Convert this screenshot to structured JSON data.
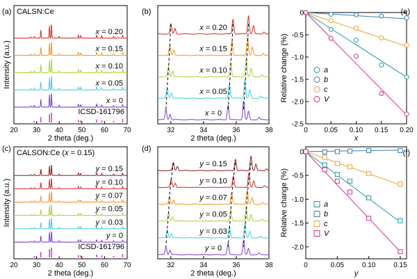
{
  "chart_data": [
    {
      "id": "a",
      "panel_label": "(a)",
      "type": "line",
      "title": "CALSN:Ce",
      "xlabel": "2 theta (deg.)",
      "ylabel": "Intensity (a.u.)",
      "xlim": [
        20,
        70
      ],
      "xticks": [
        20,
        30,
        40,
        50,
        60,
        70
      ],
      "reference": "ICSD-161796",
      "reference_color": "#cc33cc",
      "reference_peaks": [
        {
          "x": 29.0,
          "h": 0.15
        },
        {
          "x": 31.9,
          "h": 0.55
        },
        {
          "x": 35.7,
          "h": 0.85
        },
        {
          "x": 36.6,
          "h": 1.0
        },
        {
          "x": 40.0,
          "h": 0.15
        },
        {
          "x": 48.5,
          "h": 0.25
        },
        {
          "x": 49.5,
          "h": 0.2
        },
        {
          "x": 56.5,
          "h": 0.3
        },
        {
          "x": 58.8,
          "h": 0.2
        },
        {
          "x": 64.0,
          "h": 0.15
        },
        {
          "x": 68.0,
          "h": 0.35
        }
      ],
      "series": [
        {
          "name": "x = 0.20",
          "var": "x",
          "val": "0.20",
          "color": "#d7261e",
          "shift": 0.0
        },
        {
          "name": "x = 0.15",
          "var": "x",
          "val": "0.15",
          "color": "#f39322",
          "shift": 0.0
        },
        {
          "name": "x = 0.10",
          "var": "x",
          "val": "0.10",
          "color": "#a6d22c",
          "shift": 0.0
        },
        {
          "name": "x = 0.05",
          "var": "x",
          "val": "0.05",
          "color": "#3fcde0",
          "shift": 0.0
        },
        {
          "name": "x = 0",
          "var": "x",
          "val": "0",
          "color": "#7a3bd0",
          "shift": 0.0
        }
      ],
      "peaks": [
        {
          "x": 27.5,
          "h": 0.08
        },
        {
          "x": 29.0,
          "h": 0.12
        },
        {
          "x": 31.9,
          "h": 0.55
        },
        {
          "x": 35.7,
          "h": 0.85
        },
        {
          "x": 36.6,
          "h": 1.0
        },
        {
          "x": 40.0,
          "h": 0.12
        },
        {
          "x": 48.5,
          "h": 0.22
        },
        {
          "x": 49.5,
          "h": 0.18
        },
        {
          "x": 56.5,
          "h": 0.22
        },
        {
          "x": 58.8,
          "h": 0.15
        },
        {
          "x": 64.0,
          "h": 0.12
        },
        {
          "x": 68.0,
          "h": 0.2
        }
      ]
    },
    {
      "id": "b",
      "panel_label": "(b)",
      "type": "line",
      "xlabel": "2 theta (deg.)",
      "xlim": [
        31.2,
        38
      ],
      "xticks": [
        32,
        34,
        36,
        38
      ],
      "series": [
        {
          "name": "x = 0.20",
          "var": "x",
          "val": "0.20",
          "color": "#d7261e",
          "shift": 0.3
        },
        {
          "name": "x = 0.15",
          "var": "x",
          "val": "0.15",
          "color": "#f39322",
          "shift": 0.24
        },
        {
          "name": "x = 0.10",
          "var": "x",
          "val": "0.10",
          "color": "#a6d22c",
          "shift": 0.16
        },
        {
          "name": "x = 0.05",
          "var": "x",
          "val": "0.05",
          "color": "#3fcde0",
          "shift": 0.08
        },
        {
          "name": "x = 0",
          "var": "x",
          "val": "0",
          "color": "#7a3bd0",
          "shift": 0.0
        }
      ],
      "peaks": [
        {
          "x": 31.7,
          "h": 0.55
        },
        {
          "x": 31.95,
          "h": 0.3
        },
        {
          "x": 35.5,
          "h": 0.8
        },
        {
          "x": 36.45,
          "h": 1.0
        },
        {
          "x": 36.75,
          "h": 0.45
        },
        {
          "x": 37.4,
          "h": 0.12
        }
      ],
      "guide_peaks": [
        31.7,
        35.5,
        36.45
      ]
    },
    {
      "id": "e",
      "panel_label": "(e)",
      "type": "scatter",
      "xlabel": "x",
      "ylabel": "Relative change (%)",
      "xlim": [
        0,
        0.2
      ],
      "ylim": [
        -2.5,
        0
      ],
      "xticks": [
        0,
        0.05,
        0.1,
        0.15,
        0.2
      ],
      "xtick_labels": [
        "0",
        "0.05",
        "0.10",
        "0.15",
        "0.20"
      ],
      "yticks": [
        -2.5,
        -2.0,
        -1.5,
        -1.0,
        -0.5,
        0
      ],
      "ytick_labels": [
        "-2.5",
        "-2.0",
        "-1.5",
        "-1.0",
        "-0.5",
        "0"
      ],
      "marker": "circle",
      "x": [
        0,
        0.05,
        0.1,
        0.15,
        0.2
      ],
      "series": [
        {
          "name": "a",
          "color": "#1a9c9c",
          "values": [
            0,
            -0.38,
            -0.62,
            -1.18,
            -1.45
          ],
          "fit_end": -1.45
        },
        {
          "name": "b",
          "color": "#2f7fb8",
          "values": [
            0,
            -0.04,
            -0.05,
            -0.08,
            -0.12
          ],
          "fit_end": -0.14
        },
        {
          "name": "c",
          "color": "#f0a22e",
          "values": [
            0,
            -0.18,
            -0.35,
            -0.57,
            -0.73
          ],
          "fit_end": -0.76
        },
        {
          "name": "V",
          "color": "#d0308c",
          "values": [
            0,
            -0.58,
            -0.98,
            -1.82,
            -2.28
          ],
          "fit_end": -2.3
        }
      ]
    },
    {
      "id": "c",
      "panel_label": "(c)",
      "type": "line",
      "title": "CALSON:Ce (x = 0.15)",
      "title_pre": "CALSON:Ce (",
      "title_var": "x",
      "title_post": " = 0.15)",
      "xlabel": "2 theta (deg.)",
      "ylabel": "Intensity (a.u.)",
      "xlim": [
        20,
        70
      ],
      "xticks": [
        20,
        30,
        40,
        50,
        60,
        70
      ],
      "reference": "ICSD-161796",
      "reference_color": "#cc33cc",
      "reference_peaks": [
        {
          "x": 29.0,
          "h": 0.15
        },
        {
          "x": 31.9,
          "h": 0.55
        },
        {
          "x": 35.7,
          "h": 0.85
        },
        {
          "x": 36.6,
          "h": 1.0
        },
        {
          "x": 40.0,
          "h": 0.15
        },
        {
          "x": 48.5,
          "h": 0.25
        },
        {
          "x": 49.5,
          "h": 0.2
        },
        {
          "x": 56.5,
          "h": 0.3
        },
        {
          "x": 58.8,
          "h": 0.2
        },
        {
          "x": 64.0,
          "h": 0.15
        },
        {
          "x": 68.0,
          "h": 0.35
        }
      ],
      "series": [
        {
          "name": "y = 0.15",
          "var": "y",
          "val": "0.15",
          "color": "#8a1a1a",
          "shift": 0.0
        },
        {
          "name": "y = 0.10",
          "var": "y",
          "val": "0.10",
          "color": "#d7261e",
          "shift": 0.0
        },
        {
          "name": "y = 0.07",
          "var": "y",
          "val": "0.07",
          "color": "#f39322",
          "shift": 0.0
        },
        {
          "name": "y = 0.05",
          "var": "y",
          "val": "0.05",
          "color": "#a6d22c",
          "shift": 0.0
        },
        {
          "name": "y = 0.03",
          "var": "y",
          "val": "0.03",
          "color": "#3fcde0",
          "shift": 0.0
        },
        {
          "name": "y = 0",
          "var": "y",
          "val": "0",
          "color": "#7a3bd0",
          "shift": 0.0
        }
      ],
      "peaks": [
        {
          "x": 27.5,
          "h": 0.08
        },
        {
          "x": 29.0,
          "h": 0.12
        },
        {
          "x": 31.9,
          "h": 0.55
        },
        {
          "x": 35.7,
          "h": 0.85
        },
        {
          "x": 36.6,
          "h": 1.0
        },
        {
          "x": 40.0,
          "h": 0.12
        },
        {
          "x": 48.5,
          "h": 0.22
        },
        {
          "x": 49.5,
          "h": 0.18
        },
        {
          "x": 56.5,
          "h": 0.22
        },
        {
          "x": 58.8,
          "h": 0.15
        },
        {
          "x": 64.0,
          "h": 0.12
        },
        {
          "x": 68.0,
          "h": 0.2
        }
      ]
    },
    {
      "id": "d",
      "panel_label": "(d)",
      "type": "line",
      "xlabel": "2 theta (deg.)",
      "xlim": [
        31.2,
        38
      ],
      "xticks": [
        32,
        34,
        36,
        38
      ],
      "series": [
        {
          "name": "y = 0.15",
          "var": "y",
          "val": "0.15",
          "color": "#8a1a1a",
          "shift": 0.45
        },
        {
          "name": "y = 0.10",
          "var": "y",
          "val": "0.10",
          "color": "#d7261e",
          "shift": 0.32
        },
        {
          "name": "y = 0.07",
          "var": "y",
          "val": "0.07",
          "color": "#f39322",
          "shift": 0.22
        },
        {
          "name": "y = 0.05",
          "var": "y",
          "val": "0.05",
          "color": "#a6d22c",
          "shift": 0.16
        },
        {
          "name": "y = 0.03",
          "var": "y",
          "val": "0.03",
          "color": "#3fcde0",
          "shift": 0.08
        },
        {
          "name": "y = 0",
          "var": "y",
          "val": "0",
          "color": "#7a3bd0",
          "shift": 0.0
        }
      ],
      "peaks": [
        {
          "x": 31.7,
          "h": 0.55
        },
        {
          "x": 31.95,
          "h": 0.3
        },
        {
          "x": 35.5,
          "h": 0.8
        },
        {
          "x": 36.45,
          "h": 1.0
        },
        {
          "x": 36.75,
          "h": 0.45
        },
        {
          "x": 37.4,
          "h": 0.12
        }
      ],
      "guide_peaks": [
        31.7,
        35.5,
        36.45
      ]
    },
    {
      "id": "f",
      "panel_label": "(f)",
      "type": "scatter",
      "xlabel": "y",
      "ylabel": "Relative change (%)",
      "xlim": [
        0,
        0.16
      ],
      "ylim": [
        -2.25,
        0.1
      ],
      "xticks": [
        0,
        0.05,
        0.1,
        0.15
      ],
      "xtick_labels": [
        "0",
        "0.05",
        "0.10",
        "0.15"
      ],
      "yticks": [
        -2.0,
        -1.5,
        -1.0,
        -0.5,
        0
      ],
      "ytick_labels": [
        "-2.0",
        "-1.5",
        "-1.0",
        "-0.5",
        "0"
      ],
      "marker": "square",
      "x": [
        0,
        0.03,
        0.05,
        0.07,
        0.1,
        0.15
      ],
      "series": [
        {
          "name": "a",
          "color": "#1a9c9c",
          "values": [
            0,
            -0.28,
            -0.48,
            -0.62,
            -0.97,
            -1.45
          ],
          "fit_end": -1.48
        },
        {
          "name": "b",
          "color": "#2f7fb8",
          "values": [
            0,
            -0.01,
            0.0,
            0.01,
            0.02,
            0.02
          ],
          "fit_end": 0.03
        },
        {
          "name": "c",
          "color": "#f0a22e",
          "values": [
            0,
            -0.12,
            -0.25,
            -0.32,
            -0.46,
            -0.68
          ],
          "fit_end": -0.7
        },
        {
          "name": "V",
          "color": "#d0308c",
          "values": [
            0,
            -0.38,
            -0.62,
            -0.85,
            -1.4,
            -2.1
          ],
          "fit_end": -2.1
        }
      ]
    }
  ]
}
